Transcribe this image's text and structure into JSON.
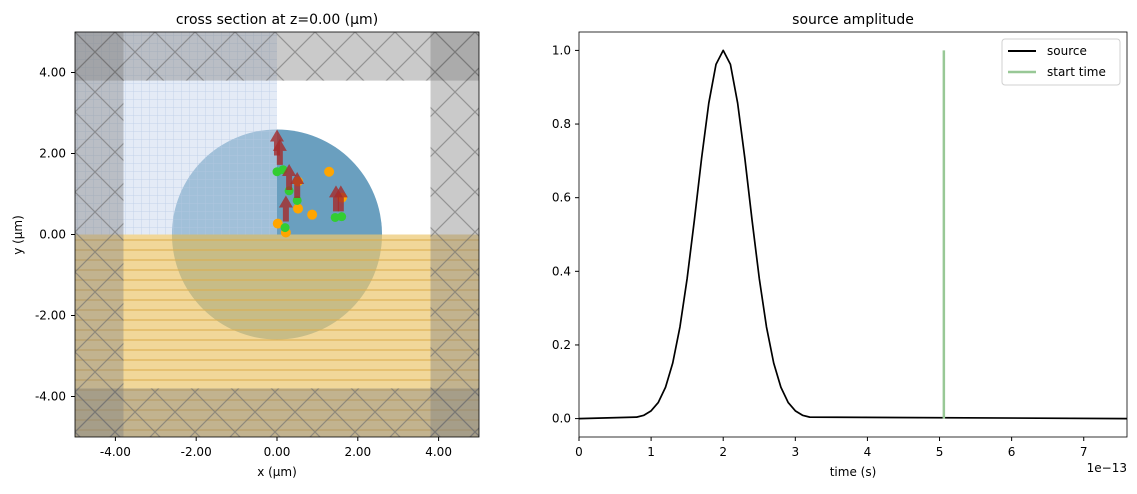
{
  "chart_data": [
    {
      "type": "cross-section",
      "title": "cross section at z=0.00 (μm)",
      "xlabel": "x (μm)",
      "ylabel": "y (μm)",
      "xlim": [
        -5,
        5
      ],
      "ylim": [
        -5,
        5
      ],
      "xticks": [
        "-4.00",
        "-2.00",
        "0.00",
        "2.00",
        "4.00"
      ],
      "yticks": [
        "4.00",
        "2.00",
        "0.00",
        "-2.00",
        "-4.00"
      ],
      "xtick_values": [
        -4,
        -2,
        0,
        2,
        4
      ],
      "ytick_values": [
        4,
        2,
        0,
        -2,
        -4
      ],
      "structures": {
        "circle": {
          "center": [
            0,
            0
          ],
          "radius": 2.6,
          "color": "#6a9fbf"
        },
        "blue_region": {
          "x": [
            -5,
            0
          ],
          "y": [
            0,
            5
          ],
          "color": "#cddbee"
        },
        "yellow_region": {
          "x": [
            -5,
            5
          ],
          "y": [
            -5,
            0
          ],
          "color": "#ebc871"
        },
        "pml_thickness": 1.2,
        "pml_color": "#808080"
      },
      "orange_points": [
        [
          1.29,
          1.55
        ],
        [
          0.52,
          1.31
        ],
        [
          0.52,
          0.64
        ],
        [
          0.87,
          0.49
        ],
        [
          0.02,
          0.27
        ],
        [
          0.22,
          0.05
        ],
        [
          1.61,
          0.91
        ]
      ],
      "green_points": [
        [
          0.0,
          1.55
        ],
        [
          0.15,
          1.6
        ],
        [
          0.3,
          1.08
        ],
        [
          0.5,
          0.84
        ],
        [
          1.44,
          0.42
        ],
        [
          1.6,
          0.44
        ],
        [
          0.2,
          0.17
        ]
      ],
      "arrows_up": [
        [
          0.07,
          1.72
        ],
        [
          0.3,
          1.1
        ],
        [
          0.5,
          0.9
        ],
        [
          0.22,
          0.32
        ],
        [
          1.46,
          0.57
        ],
        [
          1.58,
          0.57
        ],
        [
          0.0,
          1.95
        ]
      ],
      "colors": {
        "orange": "#ffa500",
        "green": "#32cd32",
        "arrow": "#a52a2a"
      }
    },
    {
      "type": "line",
      "title": "source amplitude",
      "xlabel": "time (s)",
      "ylabel": "",
      "x_offset_label": "1e−13",
      "xlim": [
        0,
        7.6
      ],
      "ylim": [
        -0.05,
        1.05
      ],
      "xticks": [
        "0",
        "1",
        "2",
        "3",
        "4",
        "5",
        "6",
        "7"
      ],
      "yticks": [
        "0.0",
        "0.2",
        "0.4",
        "0.6",
        "0.8",
        "1.0"
      ],
      "legend": "top-right",
      "series": [
        {
          "name": "source",
          "color": "#000000",
          "x": [
            0,
            0.8,
            0.9,
            1.0,
            1.1,
            1.2,
            1.3,
            1.4,
            1.5,
            1.6,
            1.7,
            1.8,
            1.9,
            2.0,
            2.1,
            2.2,
            2.3,
            2.4,
            2.5,
            2.6,
            2.7,
            2.8,
            2.9,
            3.0,
            3.1,
            3.2,
            7.6
          ],
          "y": [
            0,
            0.004,
            0.009,
            0.021,
            0.044,
            0.085,
            0.151,
            0.249,
            0.381,
            0.539,
            0.707,
            0.857,
            0.962,
            1,
            0.962,
            0.857,
            0.707,
            0.539,
            0.381,
            0.249,
            0.151,
            0.085,
            0.044,
            0.021,
            0.009,
            0.004,
            0
          ]
        },
        {
          "name": "start time",
          "color": "#98c896",
          "x": [
            5.06,
            5.06
          ],
          "y": [
            0,
            1
          ]
        }
      ]
    }
  ]
}
